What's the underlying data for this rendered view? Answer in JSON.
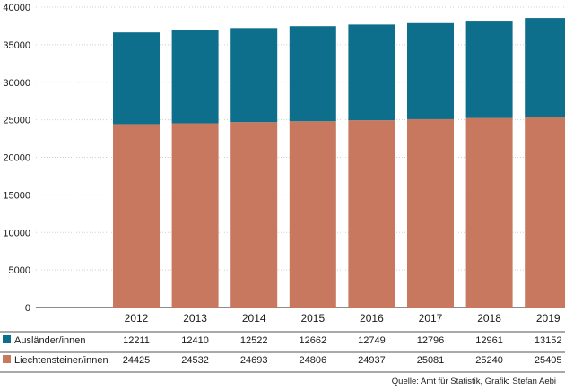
{
  "chart_data": {
    "type": "bar",
    "stacked": true,
    "categories": [
      "2012",
      "2013",
      "2014",
      "2015",
      "2016",
      "2017",
      "2018",
      "2019"
    ],
    "series": [
      {
        "name": "Liechtensteiner/innen",
        "color": "#c8785f",
        "values": [
          24425,
          24532,
          24693,
          24806,
          24937,
          25081,
          25240,
          25405
        ],
        "labels": [
          "24425",
          "24532",
          "24693",
          "24806",
          "24937",
          "25081",
          "25240",
          "25405"
        ]
      },
      {
        "name": "Ausländer/innen",
        "color": "#0e6f8c",
        "values": [
          12211,
          12410,
          12522,
          12662,
          12749,
          12796,
          12961,
          13152
        ],
        "labels": [
          "12211",
          "12410",
          "12522",
          "12662",
          "12749",
          "12796",
          "12961",
          "13152"
        ]
      }
    ],
    "ylim": [
      0,
      40000
    ],
    "yticks": [
      0,
      5000,
      10000,
      15000,
      20000,
      25000,
      30000,
      35000,
      40000
    ],
    "ytick_labels": [
      "0",
      "5000",
      "10000",
      "15000",
      "20000",
      "25000",
      "30000",
      "35000",
      "40000"
    ],
    "grid": true,
    "legend_table": [
      "Ausländer/innen",
      "Liechtensteiner/innen"
    ]
  },
  "source": "Quelle: Amt für Statistik, Grafik: Stefan Aebi"
}
